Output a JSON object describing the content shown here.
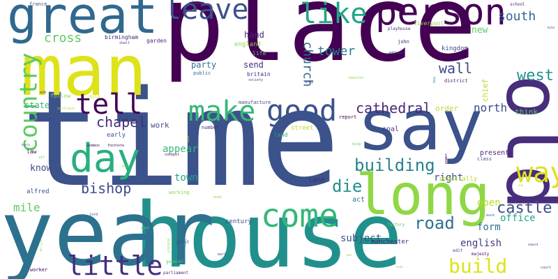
{
  "words": [
    {
      "text": "place",
      "color": "#440154"
    },
    {
      "text": "time",
      "color": "#3b528b"
    },
    {
      "text": "house",
      "color": "#21908d"
    },
    {
      "text": "year",
      "color": "#2c728e"
    },
    {
      "text": "man",
      "color": "#dde318"
    },
    {
      "text": "old",
      "color": "#472d7b"
    },
    {
      "text": "great",
      "color": "#31688e"
    },
    {
      "text": "say",
      "color": "#3b528b"
    },
    {
      "text": "long",
      "color": "#8fd744"
    },
    {
      "text": "person",
      "color": "#440154"
    },
    {
      "text": "day",
      "color": "#29af7f"
    },
    {
      "text": "way",
      "color": "#dde318"
    },
    {
      "text": "country",
      "color": "#5ec962"
    },
    {
      "text": "come",
      "color": "#35b779"
    },
    {
      "text": "good",
      "color": "#3b528b"
    },
    {
      "text": "make",
      "color": "#35b779"
    },
    {
      "text": "tell",
      "color": "#440154"
    },
    {
      "text": "leave",
      "color": "#3b528b"
    },
    {
      "text": "like",
      "color": "#21a685"
    },
    {
      "text": "little",
      "color": "#472d7b"
    },
    {
      "text": "build",
      "color": "#dde318"
    },
    {
      "text": "building",
      "color": "#26828e"
    },
    {
      "text": "cathedral",
      "color": "#482878"
    },
    {
      "text": "chapel",
      "color": "#472d7b"
    },
    {
      "text": "die",
      "color": "#21908d"
    },
    {
      "text": "road",
      "color": "#2c728e"
    },
    {
      "text": "castle",
      "color": "#3e4a89"
    },
    {
      "text": "west",
      "color": "#21908d"
    },
    {
      "text": "bishop",
      "color": "#3e4a89"
    },
    {
      "text": "wall",
      "color": "#3e4a89"
    },
    {
      "text": "north",
      "color": "#3e4a89"
    },
    {
      "text": "south",
      "color": "#31688e"
    },
    {
      "text": "tower",
      "color": "#26828e"
    },
    {
      "text": "church",
      "color": "#31688e"
    },
    {
      "text": "cross",
      "color": "#5ec962"
    },
    {
      "text": "appear",
      "color": "#35b779"
    },
    {
      "text": "mile",
      "color": "#5ec962"
    },
    {
      "text": "town",
      "color": "#21a685"
    },
    {
      "text": "english",
      "color": "#443a83"
    },
    {
      "text": "form",
      "color": "#2c728e"
    },
    {
      "text": "office",
      "color": "#21a685"
    },
    {
      "text": "open",
      "color": "#b5de2b"
    },
    {
      "text": "subject",
      "color": "#3b528b"
    },
    {
      "text": "right",
      "color": "#3e4a89"
    },
    {
      "text": "know",
      "color": "#3e4a89"
    },
    {
      "text": "new",
      "color": "#5ec962"
    },
    {
      "text": "hand",
      "color": "#482878"
    },
    {
      "text": "party",
      "color": "#2c728e"
    },
    {
      "text": "send",
      "color": "#472d7b"
    },
    {
      "text": "state",
      "color": "#35b779"
    },
    {
      "text": "work",
      "color": "#3e4a89"
    },
    {
      "text": "order",
      "color": "#b5de2b"
    },
    {
      "text": "think",
      "color": "#5ec962"
    },
    {
      "text": "chief",
      "color": "#b5de2b"
    },
    {
      "text": "present",
      "color": "#482878"
    },
    {
      "text": "act",
      "color": "#2c728e"
    },
    {
      "text": "lane",
      "color": "#482878"
    },
    {
      "text": "coal",
      "color": "#443a83"
    },
    {
      "text": "century",
      "color": "#3e4a89"
    },
    {
      "text": "manchester",
      "color": "#482878"
    },
    {
      "text": "especially",
      "color": "#b5de2b"
    },
    {
      "text": "kingdom",
      "color": "#3e4a89"
    },
    {
      "text": "railway",
      "color": "#3e4a89"
    },
    {
      "text": "alfred",
      "color": "#3b528b"
    },
    {
      "text": "england",
      "color": "#8fd744"
    },
    {
      "text": "britain",
      "color": "#482878"
    },
    {
      "text": "birmingham",
      "color": "#482878"
    },
    {
      "text": "garden",
      "color": "#482878"
    },
    {
      "text": "liverpool",
      "color": "#8fd744"
    },
    {
      "text": "early",
      "color": "#3b528b"
    },
    {
      "text": "street",
      "color": "#b5de2b"
    },
    {
      "text": "life",
      "color": "#5ec962"
    },
    {
      "text": "law",
      "color": "#440154"
    },
    {
      "text": "manufacture",
      "color": "#3e4a89"
    },
    {
      "text": "john",
      "color": "#482878"
    },
    {
      "text": "district",
      "color": "#472d7b"
    },
    {
      "text": "public",
      "color": "#31688e"
    },
    {
      "text": "land",
      "color": "#21a685"
    },
    {
      "text": "report",
      "color": "#440154"
    },
    {
      "text": "number",
      "color": "#472d7b"
    },
    {
      "text": "follow",
      "color": "#8fd744"
    },
    {
      "text": "class",
      "color": "#3e4a89"
    },
    {
      "text": "working",
      "color": "#8fd744"
    },
    {
      "text": "general",
      "color": "#5ec962"
    },
    {
      "text": "print",
      "color": "#3e4a89"
    },
    {
      "text": "worker",
      "color": "#440154"
    },
    {
      "text": "majesty",
      "color": "#440154"
    },
    {
      "text": "parliament",
      "color": "#472d7b"
    },
    {
      "text": "edit",
      "color": "#3e4a89"
    },
    {
      "text": "france",
      "color": "#3b528b"
    },
    {
      "text": "school",
      "color": "#482878"
    },
    {
      "text": "player",
      "color": "#3e4a89"
    },
    {
      "text": "playhouse",
      "color": "#472d7b"
    },
    {
      "text": "address",
      "color": "#3e4a89"
    },
    {
      "text": "society",
      "color": "#3e4a89"
    },
    {
      "text": "army",
      "color": "#482878"
    },
    {
      "text": "shall",
      "color": "#472d7b"
    },
    {
      "text": "child",
      "color": "#b5de2b"
    },
    {
      "text": "sch",
      "color": "#440154"
    },
    {
      "text": "scotland",
      "color": "#b5de2b"
    },
    {
      "text": "war",
      "color": "#b5de2b"
    },
    {
      "text": "common",
      "color": "#440154"
    },
    {
      "text": "footnote",
      "color": "#440154"
    },
    {
      "text": "cockpit",
      "color": "#440154"
    },
    {
      "text": "sir",
      "color": "#5ec962"
    },
    {
      "text": "henry",
      "color": "#3e4a89"
    },
    {
      "text": "text",
      "color": "#8fd744"
    },
    {
      "text": "use",
      "color": "#3e4a89"
    },
    {
      "text": "king",
      "color": "#5ec962"
    },
    {
      "text": "power",
      "color": "#440154"
    },
    {
      "text": "boy",
      "color": "#21908d"
    },
    {
      "text": "beeston",
      "color": "#8fd744"
    },
    {
      "text": "book",
      "color": "#8fd744"
    },
    {
      "text": "earl",
      "color": "#3e4a89"
    },
    {
      "text": "son",
      "color": "#8fd744"
    },
    {
      "text": "lord",
      "color": "#3e4a89"
    },
    {
      "text": "play",
      "color": "#5ec962"
    },
    {
      "text": "dialect",
      "color": "#8fd744"
    },
    {
      "text": "line",
      "color": "#21908d"
    },
    {
      "text": "factory",
      "color": "#5ec962"
    },
    {
      "text": "death",
      "color": "#3e4a89"
    },
    {
      "text": "edward",
      "color": "#3e4a89"
    },
    {
      "text": "court",
      "color": "#3e4a89"
    },
    {
      "text": "scot",
      "color": "#5ec962"
    },
    {
      "text": "william",
      "color": "#8fd744"
    },
    {
      "text": "hold",
      "color": "#482878"
    },
    {
      "text": "men",
      "color": "#8fd744"
    }
  ]
}
